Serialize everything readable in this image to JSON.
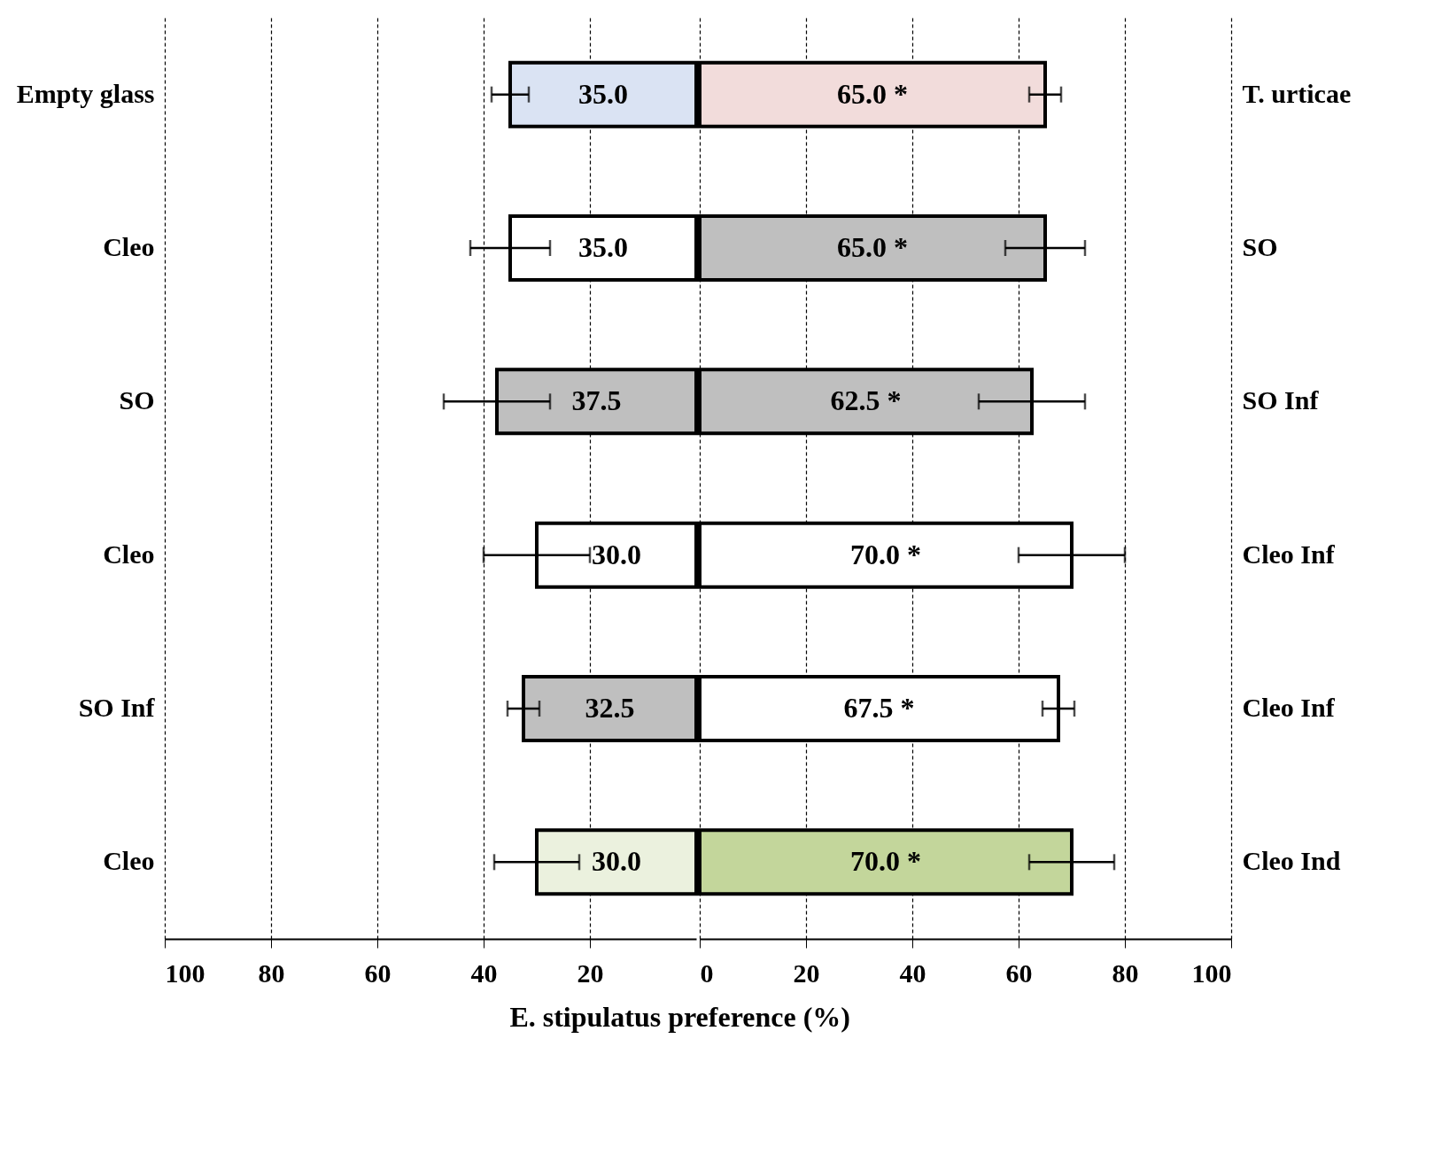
{
  "chart_data": [
    {
      "type": "bar",
      "orientation": "horizontal",
      "xlabel": "E. stipulatus preference (%)",
      "categories": [
        "Empty  glass",
        "Cleo",
        "SO",
        "Cleo",
        "SO Inf",
        "Cleo"
      ],
      "xlim": [
        100,
        0
      ],
      "xticks": [
        100,
        80,
        60,
        40,
        20
      ],
      "grid": "x",
      "colors": [
        "#dae3f3",
        "#ffffff",
        "#bfbfbf",
        "#ffffff",
        "#bfbfbf",
        "#ebf1de"
      ],
      "values": [
        35,
        35,
        37.5,
        30,
        32.5,
        30
      ],
      "errors": [
        3.5,
        7.5,
        10,
        10,
        3,
        8
      ],
      "value_labels": [
        "35.0",
        "35.0",
        "37.5",
        "30.0",
        "32.5",
        "30.0"
      ]
    },
    {
      "type": "bar",
      "orientation": "horizontal",
      "categories": [
        "T. urticae",
        "SO",
        "SO Inf",
        "Cleo Inf",
        "Cleo Inf",
        "Cleo Ind"
      ],
      "xlim": [
        0,
        100
      ],
      "xticks": [
        0,
        20,
        40,
        60,
        80,
        100
      ],
      "grid": "x",
      "colors": [
        "#f2dcdb",
        "#bfbfbf",
        "#bfbfbf",
        "#ffffff",
        "#ffffff",
        "#c3d69b"
      ],
      "values": [
        65,
        65,
        62.5,
        70,
        67.5,
        70
      ],
      "errors": [
        3,
        7.5,
        10,
        10,
        3,
        8
      ],
      "value_labels": [
        "65.0 *",
        "65.0 *",
        "62.5 *",
        "70.0 *",
        "67.5 *",
        "70.0 *"
      ]
    }
  ]
}
